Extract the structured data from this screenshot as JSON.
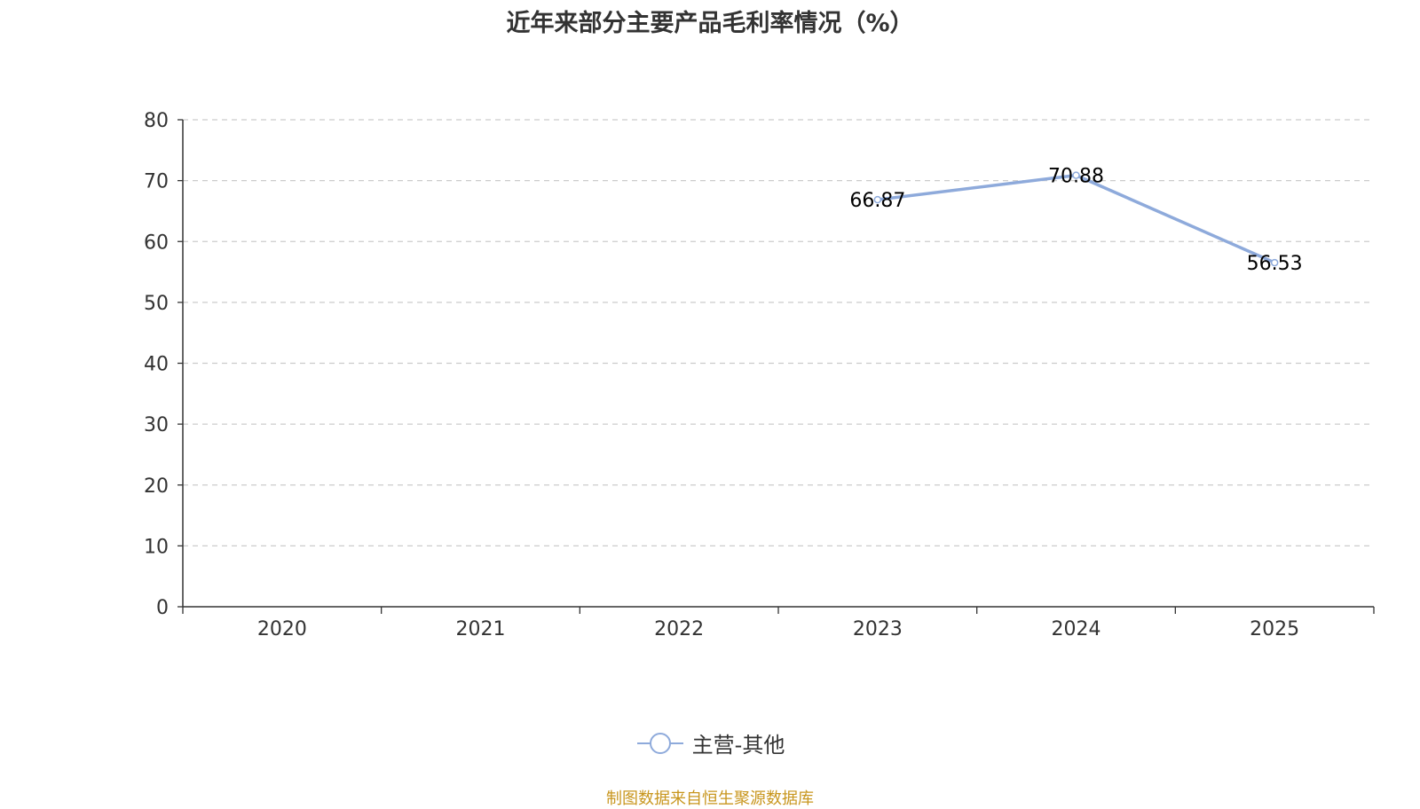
{
  "chart_data": {
    "type": "line",
    "title": "近年来部分主要产品毛利率情况（%）",
    "categories": [
      "2020",
      "2021",
      "2022",
      "2023",
      "2024",
      "2025"
    ],
    "ylim": [
      0,
      80
    ],
    "yticks": [
      0,
      10,
      20,
      30,
      40,
      50,
      60,
      70,
      80
    ],
    "grid": true,
    "legend_position": "bottom-center",
    "series": [
      {
        "name": "主营-其他",
        "color": "#8eaadb",
        "values": [
          null,
          null,
          null,
          66.87,
          70.88,
          56.53
        ]
      }
    ]
  },
  "source_note": "制图数据来自恒生聚源数据库"
}
